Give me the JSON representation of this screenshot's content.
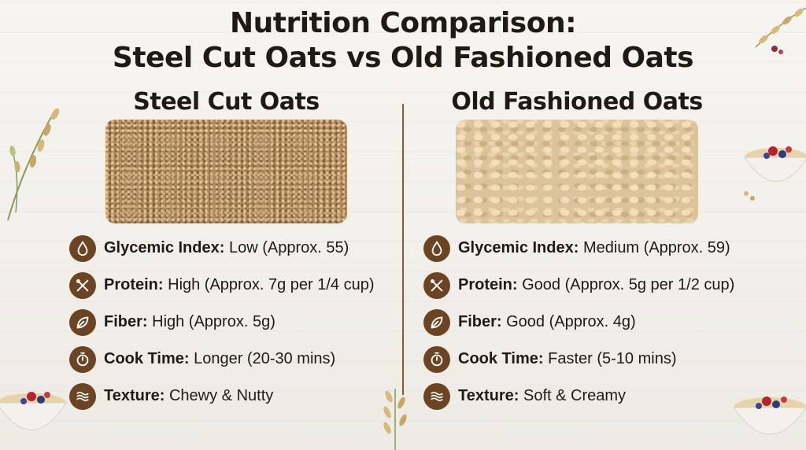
{
  "title": {
    "line1": "Nutrition Comparison:",
    "line2": "Steel Cut Oats vs Old Fashioned Oats"
  },
  "colors": {
    "accent": "#6b4424",
    "divider": "#8a5a33",
    "text": "#1f1a14"
  },
  "columns": [
    {
      "heading": "Steel Cut Oats",
      "rows": [
        {
          "icon": "drop-icon",
          "label": "Glycemic Index:",
          "value": " Low (Approx. 55)"
        },
        {
          "icon": "utensils-icon",
          "label": "Protein:",
          "value": " High (Approx. 7g per 1/4 cup)"
        },
        {
          "icon": "leaf-icon",
          "label": "Fiber:",
          "value": " High (Approx. 5g)"
        },
        {
          "icon": "timer-icon",
          "label": "Cook Time:",
          "value": " Longer (20-30 mins)"
        },
        {
          "icon": "wave-icon",
          "label": "Texture:",
          "value": " Chewy & Nutty"
        }
      ]
    },
    {
      "heading": "Old Fashioned Oats",
      "rows": [
        {
          "icon": "drop-icon",
          "label": "Glycemic Index:",
          "value": " Medium (Approx. 59)"
        },
        {
          "icon": "utensils-icon",
          "label": "Protein:",
          "value": " Good (Approx. 5g per 1/2 cup)"
        },
        {
          "icon": "leaf-icon",
          "label": "Fiber:",
          "value": " Good (Approx. 4g)"
        },
        {
          "icon": "timer-icon",
          "label": "Cook Time:",
          "value": " Faster (5-10 mins)"
        },
        {
          "icon": "wave-icon",
          "label": "Texture:",
          "value": " Soft & Creamy"
        }
      ]
    }
  ]
}
